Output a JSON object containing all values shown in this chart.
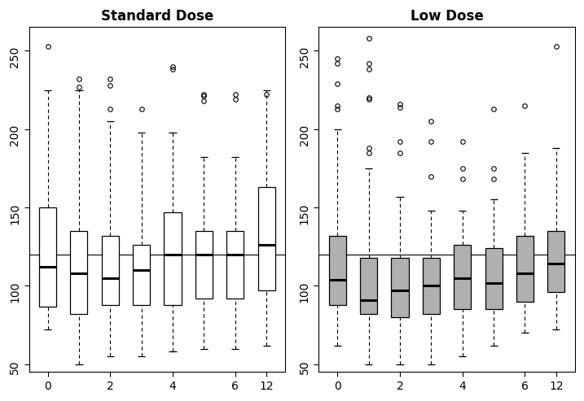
{
  "standard_dose": {
    "title": "Standard Dose",
    "x_positions": [
      0,
      1,
      2,
      3,
      4,
      5,
      6,
      7
    ],
    "x_ticks": [
      "0",
      "2",
      "4",
      "6",
      "12"
    ],
    "x_tick_positions": [
      0,
      2,
      4,
      6,
      7
    ],
    "boxes": [
      {
        "q1": 87,
        "median": 112,
        "q3": 150,
        "whisker_low": 72,
        "whisker_high": 225,
        "outliers": [
          253
        ]
      },
      {
        "q1": 82,
        "median": 108,
        "q3": 135,
        "whisker_low": 50,
        "whisker_high": 225,
        "outliers": [
          232,
          227
        ]
      },
      {
        "q1": 88,
        "median": 105,
        "q3": 132,
        "whisker_low": 55,
        "whisker_high": 205,
        "outliers": [
          232,
          228,
          213
        ]
      },
      {
        "q1": 88,
        "median": 110,
        "q3": 126,
        "whisker_low": 55,
        "whisker_high": 198,
        "outliers": [
          213
        ]
      },
      {
        "q1": 88,
        "median": 120,
        "q3": 147,
        "whisker_low": 58,
        "whisker_high": 198,
        "outliers": [
          240,
          238
        ]
      },
      {
        "q1": 92,
        "median": 120,
        "q3": 135,
        "whisker_low": 60,
        "whisker_high": 182,
        "outliers": [
          222,
          221,
          218
        ]
      },
      {
        "q1": 92,
        "median": 120,
        "q3": 135,
        "whisker_low": 60,
        "whisker_high": 182,
        "outliers": [
          222,
          219
        ]
      },
      {
        "q1": 97,
        "median": 126,
        "q3": 163,
        "whisker_low": 62,
        "whisker_high": 225,
        "outliers": [
          222
        ]
      }
    ],
    "box_color": "white",
    "box_edgecolor": "black"
  },
  "low_dose": {
    "title": "Low Dose",
    "x_positions": [
      0,
      1,
      2,
      3,
      4,
      5,
      6,
      7
    ],
    "x_ticks": [
      "0",
      "2",
      "4",
      "6",
      "12"
    ],
    "x_tick_positions": [
      0,
      2,
      4,
      6,
      7
    ],
    "boxes": [
      {
        "q1": 88,
        "median": 104,
        "q3": 132,
        "whisker_low": 62,
        "whisker_high": 200,
        "outliers": [
          245,
          242,
          229,
          215,
          213
        ]
      },
      {
        "q1": 82,
        "median": 91,
        "q3": 118,
        "whisker_low": 50,
        "whisker_high": 175,
        "outliers": [
          258,
          242,
          238,
          220,
          219,
          188,
          185
        ]
      },
      {
        "q1": 80,
        "median": 97,
        "q3": 118,
        "whisker_low": 50,
        "whisker_high": 157,
        "outliers": [
          216,
          214,
          192,
          185
        ]
      },
      {
        "q1": 82,
        "median": 100,
        "q3": 118,
        "whisker_low": 50,
        "whisker_high": 148,
        "outliers": [
          205,
          192,
          170
        ]
      },
      {
        "q1": 85,
        "median": 105,
        "q3": 126,
        "whisker_low": 55,
        "whisker_high": 148,
        "outliers": [
          192,
          175,
          168
        ]
      },
      {
        "q1": 85,
        "median": 102,
        "q3": 124,
        "whisker_low": 62,
        "whisker_high": 155,
        "outliers": [
          213,
          175,
          168
        ]
      },
      {
        "q1": 90,
        "median": 108,
        "q3": 132,
        "whisker_low": 70,
        "whisker_high": 185,
        "outliers": [
          215
        ]
      },
      {
        "q1": 96,
        "median": 114,
        "q3": 135,
        "whisker_low": 72,
        "whisker_high": 188,
        "outliers": [
          253
        ]
      }
    ],
    "box_color": "#b0b0b0",
    "box_edgecolor": "black"
  },
  "hline_y": 120,
  "ylim": [
    45,
    265
  ],
  "yticks": [
    50,
    100,
    150,
    200,
    250
  ],
  "figure_size": [
    7.17,
    4.93
  ],
  "dpi": 100
}
